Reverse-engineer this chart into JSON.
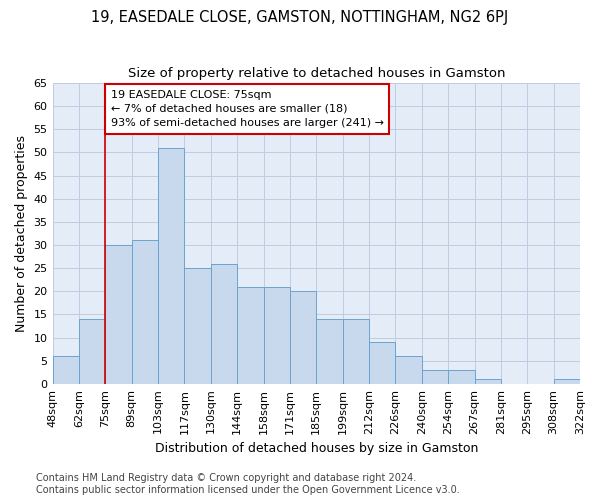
{
  "title": "19, EASEDALE CLOSE, GAMSTON, NOTTINGHAM, NG2 6PJ",
  "subtitle": "Size of property relative to detached houses in Gamston",
  "xlabel": "Distribution of detached houses by size in Gamston",
  "ylabel": "Number of detached properties",
  "bar_values": [
    6,
    14,
    30,
    31,
    51,
    25,
    26,
    21,
    21,
    20,
    14,
    14,
    9,
    6,
    3,
    3,
    1,
    0,
    0,
    1
  ],
  "bin_labels": [
    "48sqm",
    "62sqm",
    "75sqm",
    "89sqm",
    "103sqm",
    "117sqm",
    "130sqm",
    "144sqm",
    "158sqm",
    "171sqm",
    "185sqm",
    "199sqm",
    "212sqm",
    "226sqm",
    "240sqm",
    "254sqm",
    "267sqm",
    "281sqm",
    "295sqm",
    "308sqm",
    "322sqm"
  ],
  "bar_color": "#c8d9ee",
  "bar_edge_color": "#6ba3d0",
  "annotation_box_line1": "19 EASEDALE CLOSE: 75sqm",
  "annotation_box_line2": "← 7% of detached houses are smaller (18)",
  "annotation_box_line3": "93% of semi-detached houses are larger (241) →",
  "annotation_box_color": "white",
  "annotation_box_edge_color": "#cc0000",
  "vline_color": "#cc0000",
  "ylim": [
    0,
    65
  ],
  "yticks": [
    0,
    5,
    10,
    15,
    20,
    25,
    30,
    35,
    40,
    45,
    50,
    55,
    60,
    65
  ],
  "grid_color": "#c0cce0",
  "bg_color": "#e4ecf7",
  "footer_text": "Contains HM Land Registry data © Crown copyright and database right 2024.\nContains public sector information licensed under the Open Government Licence v3.0.",
  "title_fontsize": 10.5,
  "subtitle_fontsize": 9.5,
  "axis_label_fontsize": 9,
  "tick_fontsize": 8,
  "annotation_fontsize": 8,
  "footer_fontsize": 7
}
